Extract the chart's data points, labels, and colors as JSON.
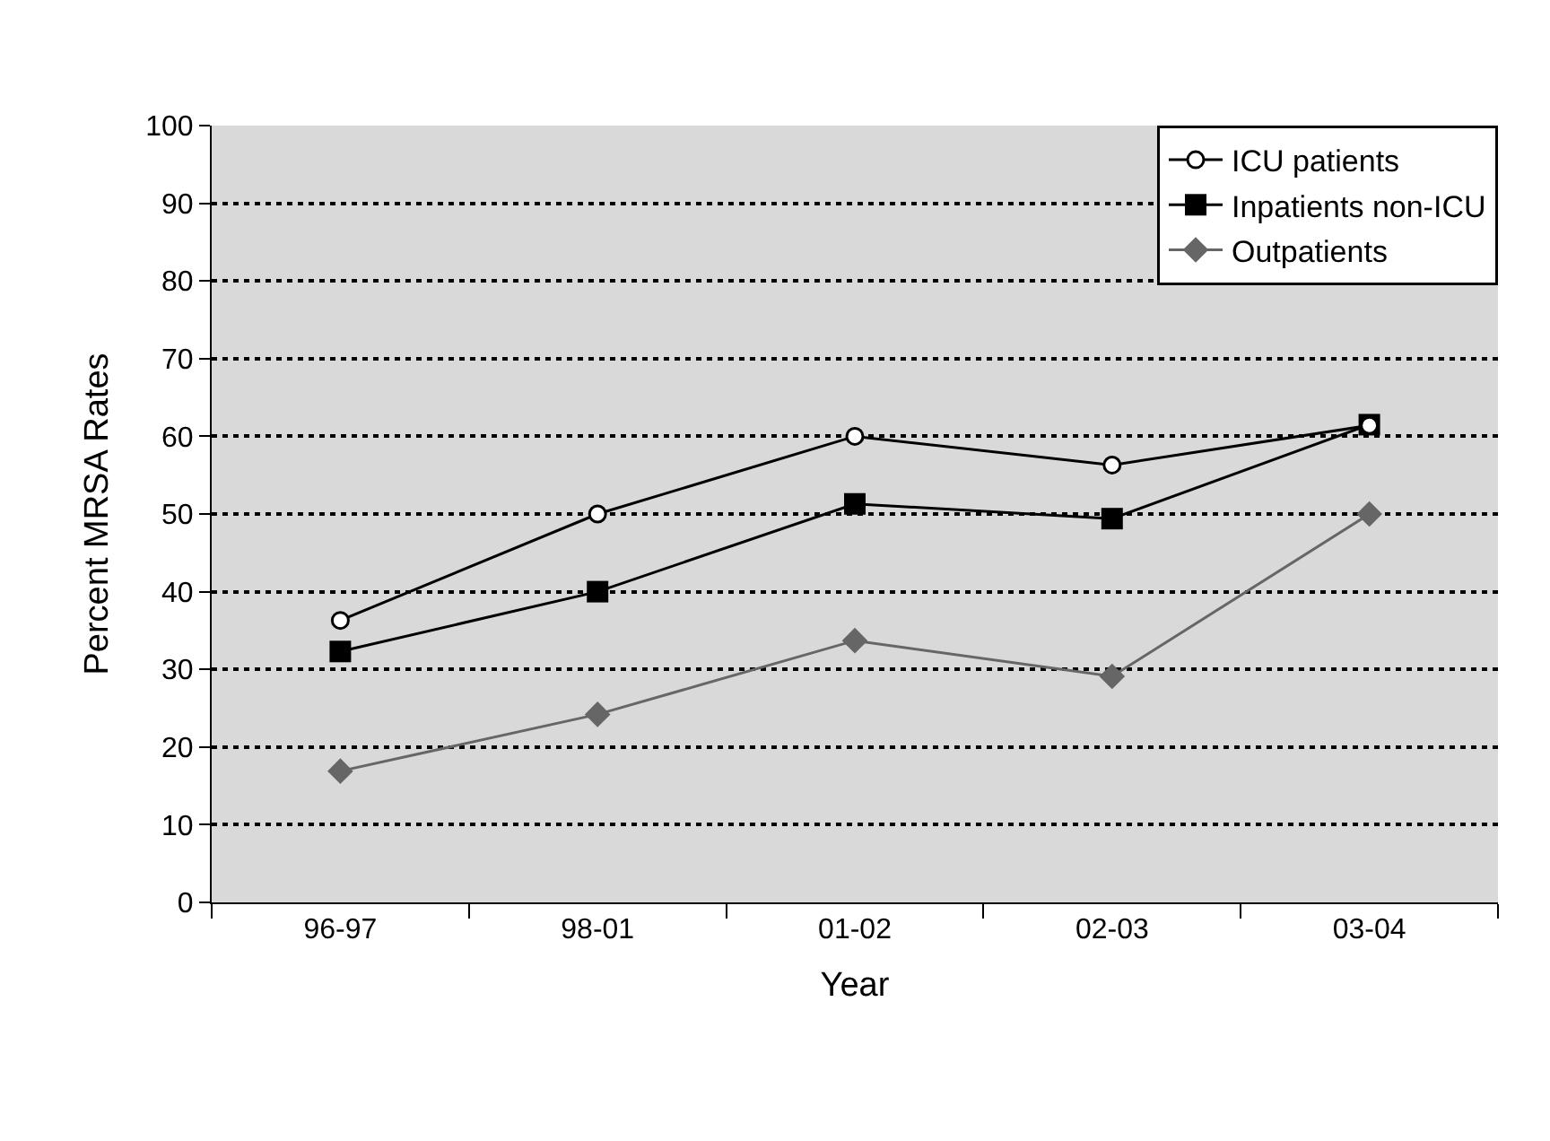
{
  "chart_data": {
    "type": "line",
    "xlabel": "Year",
    "ylabel": "Percent MRSA Rates",
    "categories": [
      "96-97",
      "98-01",
      "01-02",
      "02-03",
      "03-04"
    ],
    "series": [
      {
        "name": "ICU patients",
        "color": "#000000",
        "marker": "circle",
        "values": [
          36.3,
          50,
          60,
          56.3,
          61.4
        ]
      },
      {
        "name": "Inpatients non-ICU",
        "color": "#000000",
        "marker": "square",
        "values": [
          32.3,
          40,
          51.3,
          49.4,
          61.5
        ]
      },
      {
        "name": "Outpatients",
        "color": "#666666",
        "marker": "diamond",
        "values": [
          16.9,
          24.2,
          33.7,
          29.1,
          50
        ]
      }
    ],
    "ylim": [
      0,
      100
    ],
    "yticks": [
      0,
      10,
      20,
      30,
      40,
      50,
      60,
      70,
      80,
      90,
      100
    ],
    "grid": "y",
    "legend": "top right",
    "line_style": "solid"
  }
}
